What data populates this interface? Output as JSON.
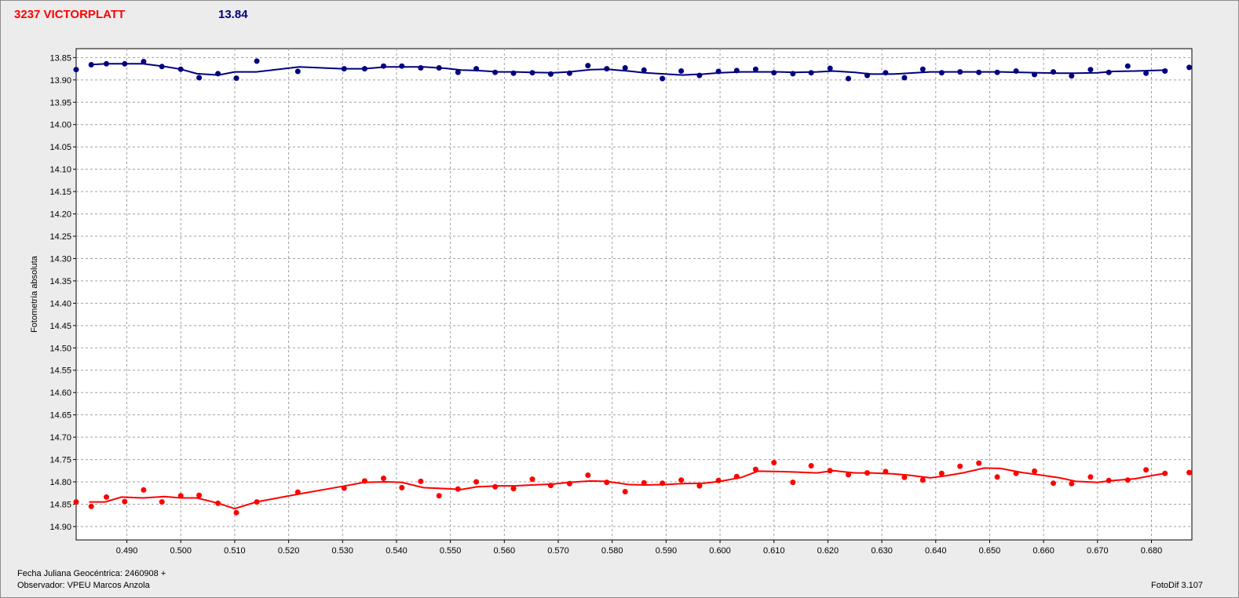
{
  "header": {
    "object_label": "3237 VICTORPLATT",
    "magnitude_label": "13.84"
  },
  "footer": {
    "julian_date_label": "Fecha Juliana Geocéntrica: 2460908 +",
    "observer_label": "Observador: VPEU Marcos Anzola",
    "software_label": "FotoDif 3.107"
  },
  "colors": {
    "comparison": "#000080",
    "target": "#ff0000",
    "background": "#ececec",
    "plot_background": "#ffffff",
    "grid": "#a0a0a0"
  },
  "chart_data": {
    "type": "scatter",
    "title": "",
    "xlabel": "",
    "ylabel": "Fotometría absoluta",
    "xlim": [
      0.4806,
      0.6875
    ],
    "ylim": [
      14.93,
      13.83
    ],
    "y_inverted": true,
    "grid": true,
    "x_ticks": [
      "0.490",
      "0.500",
      "0.510",
      "0.520",
      "0.530",
      "0.540",
      "0.550",
      "0.560",
      "0.570",
      "0.580",
      "0.590",
      "0.600",
      "0.610",
      "0.620",
      "0.630",
      "0.640",
      "0.650",
      "0.660",
      "0.670",
      "0.680"
    ],
    "y_ticks": [
      "13.85",
      "13.90",
      "13.95",
      "14.00",
      "14.05",
      "14.10",
      "14.15",
      "14.20",
      "14.25",
      "14.30",
      "14.35",
      "14.40",
      "14.45",
      "14.50",
      "14.55",
      "14.60",
      "14.65",
      "14.70",
      "14.75",
      "14.80",
      "14.85",
      "14.90"
    ],
    "series": [
      {
        "color": "#000080",
        "x": [
          0.4806,
          0.4834,
          0.4862,
          0.4896,
          0.4931,
          0.4965,
          0.5,
          0.5034,
          0.5069,
          0.5103,
          0.5141,
          0.5217,
          0.5303,
          0.5341,
          0.5376,
          0.541,
          0.5445,
          0.5479,
          0.5514,
          0.5548,
          0.5583,
          0.5617,
          0.5652,
          0.5686,
          0.5721,
          0.5755,
          0.579,
          0.5824,
          0.5859,
          0.5893,
          0.5928,
          0.5962,
          0.5997,
          0.6031,
          0.6066,
          0.61,
          0.6135,
          0.6169,
          0.6204,
          0.6238,
          0.6273,
          0.6307,
          0.6342,
          0.6376,
          0.6411,
          0.6445,
          0.648,
          0.6514,
          0.6549,
          0.6583,
          0.6618,
          0.6652,
          0.6687,
          0.6721,
          0.6756,
          0.679,
          0.6825,
          0.687
        ],
        "y": [
          13.877,
          13.866,
          13.864,
          13.864,
          13.859,
          13.87,
          13.876,
          13.895,
          13.886,
          13.896,
          13.858,
          13.881,
          13.875,
          13.875,
          13.869,
          13.869,
          13.873,
          13.873,
          13.883,
          13.875,
          13.883,
          13.885,
          13.884,
          13.887,
          13.885,
          13.868,
          13.875,
          13.873,
          13.878,
          13.897,
          13.88,
          13.89,
          13.881,
          13.879,
          13.876,
          13.884,
          13.886,
          13.884,
          13.874,
          13.897,
          13.89,
          13.884,
          13.895,
          13.876,
          13.884,
          13.882,
          13.883,
          13.883,
          13.88,
          13.888,
          13.882,
          13.891,
          13.877,
          13.883,
          13.869,
          13.885,
          13.88,
          13.872
        ],
        "smooth_x": [
          0.483,
          0.486,
          0.489,
          0.493,
          0.497,
          0.5,
          0.503,
          0.507,
          0.51,
          0.514,
          0.522,
          0.53,
          0.534,
          0.538,
          0.541,
          0.545,
          0.549,
          0.552,
          0.555,
          0.559,
          0.562,
          0.565,
          0.569,
          0.572,
          0.576,
          0.579,
          0.583,
          0.586,
          0.59,
          0.593,
          0.597,
          0.6,
          0.604,
          0.607,
          0.611,
          0.614,
          0.618,
          0.621,
          0.625,
          0.628,
          0.632,
          0.635,
          0.639,
          0.642,
          0.645,
          0.649,
          0.652,
          0.656,
          0.659,
          0.663,
          0.666,
          0.67,
          0.673,
          0.677,
          0.68,
          0.683
        ],
        "smooth_y": [
          13.866,
          13.864,
          13.864,
          13.864,
          13.87,
          13.876,
          13.886,
          13.889,
          13.882,
          13.882,
          13.871,
          13.875,
          13.875,
          13.871,
          13.871,
          13.871,
          13.874,
          13.878,
          13.879,
          13.882,
          13.882,
          13.883,
          13.884,
          13.882,
          13.877,
          13.876,
          13.88,
          13.884,
          13.887,
          13.889,
          13.887,
          13.884,
          13.882,
          13.882,
          13.882,
          13.883,
          13.882,
          13.88,
          13.883,
          13.887,
          13.887,
          13.885,
          13.882,
          13.882,
          13.882,
          13.882,
          13.882,
          13.883,
          13.884,
          13.885,
          13.885,
          13.884,
          13.881,
          13.88,
          13.879,
          13.878
        ]
      },
      {
        "color": "#ff0000",
        "x": [
          0.4806,
          0.4834,
          0.4862,
          0.4896,
          0.4931,
          0.4965,
          0.5,
          0.5034,
          0.5069,
          0.5103,
          0.5141,
          0.5217,
          0.5303,
          0.5341,
          0.5376,
          0.541,
          0.5445,
          0.5479,
          0.5514,
          0.5548,
          0.5583,
          0.5617,
          0.5652,
          0.5686,
          0.5721,
          0.5755,
          0.579,
          0.5824,
          0.5859,
          0.5893,
          0.5928,
          0.5962,
          0.5997,
          0.6031,
          0.6066,
          0.61,
          0.6135,
          0.6169,
          0.6204,
          0.6238,
          0.6273,
          0.6307,
          0.6342,
          0.6376,
          0.6411,
          0.6445,
          0.648,
          0.6514,
          0.6549,
          0.6583,
          0.6618,
          0.6652,
          0.6687,
          0.6721,
          0.6756,
          0.679,
          0.6825,
          0.687
        ],
        "y": [
          14.845,
          14.855,
          14.834,
          14.844,
          14.818,
          14.845,
          14.831,
          14.83,
          14.848,
          14.869,
          14.845,
          14.823,
          14.814,
          14.798,
          14.792,
          14.813,
          14.799,
          14.831,
          14.816,
          14.8,
          14.811,
          14.815,
          14.794,
          14.808,
          14.804,
          14.785,
          14.801,
          14.822,
          14.802,
          14.803,
          14.796,
          14.809,
          14.797,
          14.788,
          14.772,
          14.757,
          14.801,
          14.764,
          14.775,
          14.784,
          14.78,
          14.777,
          14.79,
          14.796,
          14.781,
          14.765,
          14.758,
          14.789,
          14.781,
          14.776,
          14.803,
          14.804,
          14.789,
          14.797,
          14.796,
          14.773,
          14.781,
          14.779
        ],
        "smooth_x": [
          0.483,
          0.486,
          0.489,
          0.493,
          0.497,
          0.5,
          0.503,
          0.507,
          0.51,
          0.514,
          0.522,
          0.53,
          0.534,
          0.538,
          0.541,
          0.545,
          0.549,
          0.552,
          0.555,
          0.559,
          0.562,
          0.565,
          0.569,
          0.572,
          0.576,
          0.579,
          0.583,
          0.586,
          0.59,
          0.593,
          0.597,
          0.6,
          0.604,
          0.607,
          0.611,
          0.614,
          0.618,
          0.621,
          0.625,
          0.628,
          0.632,
          0.635,
          0.639,
          0.642,
          0.645,
          0.649,
          0.652,
          0.656,
          0.659,
          0.663,
          0.666,
          0.67,
          0.673,
          0.677,
          0.68,
          0.683
        ],
        "smooth_y": [
          14.845,
          14.845,
          14.834,
          14.836,
          14.833,
          14.836,
          14.836,
          14.848,
          14.86,
          14.845,
          14.827,
          14.81,
          14.801,
          14.8,
          14.801,
          14.813,
          14.815,
          14.817,
          14.811,
          14.809,
          14.809,
          14.807,
          14.805,
          14.801,
          14.798,
          14.799,
          14.806,
          14.807,
          14.806,
          14.804,
          14.803,
          14.799,
          14.79,
          14.776,
          14.777,
          14.778,
          14.78,
          14.775,
          14.78,
          14.78,
          14.782,
          14.785,
          14.791,
          14.786,
          14.78,
          14.769,
          14.77,
          14.779,
          14.784,
          14.791,
          14.799,
          14.801,
          14.797,
          14.793,
          14.786,
          14.78
        ]
      }
    ]
  }
}
